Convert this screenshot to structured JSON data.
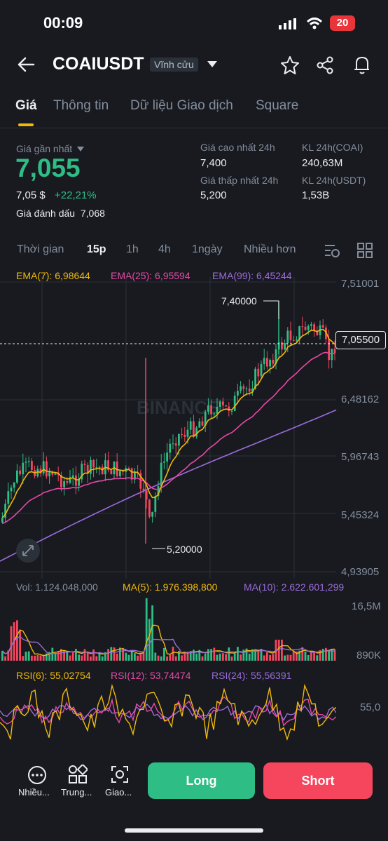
{
  "status": {
    "time": "00:09",
    "battery": "20"
  },
  "header": {
    "symbol": "COAIUSDT",
    "badge": "Vĩnh cửu"
  },
  "tabs": [
    "Giá",
    "Thông tin",
    "Dữ liệu Giao dịch",
    "Square"
  ],
  "price": {
    "last_label": "Giá gần nhất",
    "last": "7,055",
    "usd": "7,05 $",
    "change": "+22,21%",
    "mark_label": "Giá đánh dấu",
    "mark": "7,068"
  },
  "stats": {
    "high_label": "Giá cao nhất 24h",
    "high": "7,400",
    "low_label": "Giá thấp nhất 24h",
    "low": "5,200",
    "vol_coai_label": "KL 24h(COAI)",
    "vol_coai": "240,63M",
    "vol_usdt_label": "KL 24h(USDT)",
    "vol_usdt": "1,53B"
  },
  "timeframes": [
    "Thời gian",
    "15p",
    "1h",
    "4h",
    "1ngày",
    "Nhiều hơn"
  ],
  "ema": {
    "ema7": "EMA(7): 6,98644",
    "ema25": "EMA(25): 6,95594",
    "ema99": "EMA(99): 6,45244"
  },
  "price_axis": [
    "7,51001",
    "6,48162",
    "5,96743",
    "5,45324",
    "4,93905"
  ],
  "chart_labels": {
    "high": "7,40000",
    "low": "5,20000",
    "current": "7,05500"
  },
  "volume": {
    "vol": "Vol: 1.124.048,000",
    "ma5": "MA(5): 1.976.398,800",
    "ma10": "MA(10): 2.622.601,299",
    "axis_top": "16,5M",
    "axis_bottom": "890K"
  },
  "rsi": {
    "rsi6": "RSI(6): 55,02754",
    "rsi12": "RSI(12): 53,74474",
    "rsi24": "RSI(24): 55,56391",
    "axis": "55,0"
  },
  "watermark": "BINANCE",
  "bottom": {
    "more": "Nhiều...",
    "middle": "Trung...",
    "trade": "Giao...",
    "long": "Long",
    "short": "Short"
  },
  "colors": {
    "up": "#2EBD85",
    "down": "#F6465D",
    "ema7": "#F0B90B",
    "ema25": "#E649A6",
    "ema99": "#9B6CDB"
  }
}
